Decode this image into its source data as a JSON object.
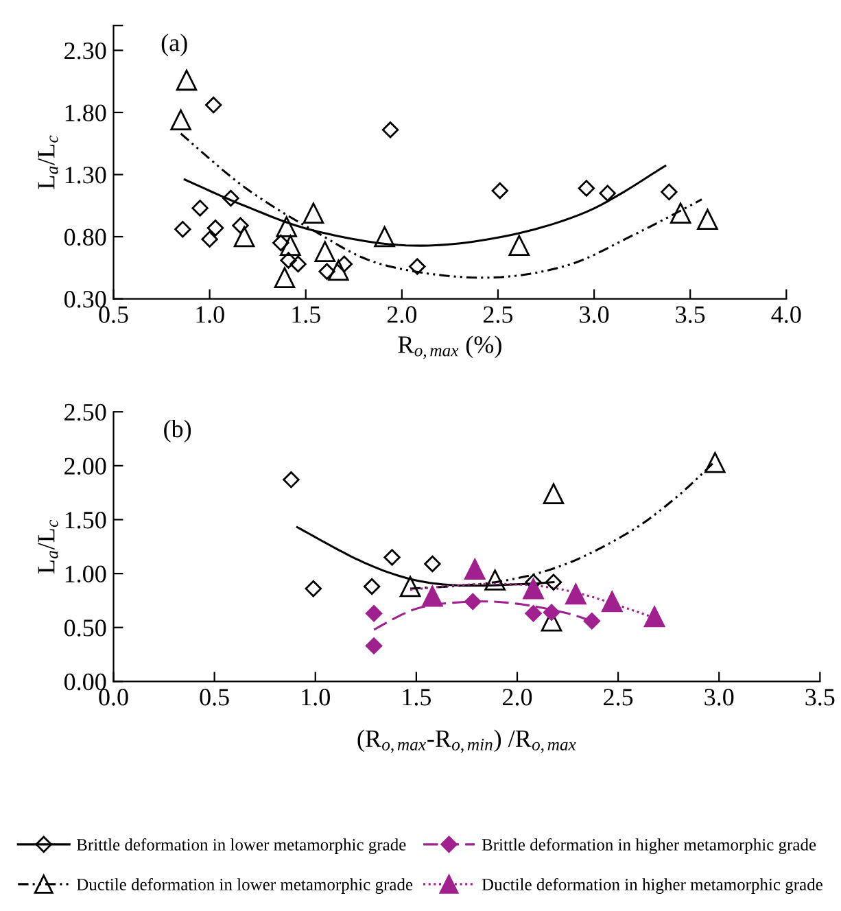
{
  "chart_data": [
    {
      "type": "scatter",
      "annotations": [
        "(a)"
      ],
      "xlabel": "R$_{o,max}$ (%)",
      "ylabel": "L$_{a}$/L$_{c}$",
      "xlim": [
        0.5,
        4.0
      ],
      "xticks": [
        {
          "value": 0.5,
          "label": "0.5"
        },
        {
          "value": 1.0,
          "label": "1.0"
        },
        {
          "value": 1.5,
          "label": "1.5"
        },
        {
          "value": 2.0,
          "label": "2.0"
        },
        {
          "value": 2.5,
          "label": "2.5"
        },
        {
          "value": 3.0,
          "label": "3.0"
        },
        {
          "value": 3.5,
          "label": "3.5"
        },
        {
          "value": 4.0,
          "label": "4.0"
        }
      ],
      "ylim": [
        0.3,
        2.5
      ],
      "yticks": [
        {
          "value": 0.3,
          "label": "0.30"
        },
        {
          "value": 0.8,
          "label": "0.80"
        },
        {
          "value": 1.3,
          "label": "1.30"
        },
        {
          "value": 1.8,
          "label": "1.80"
        },
        {
          "value": 2.3,
          "label": "2.30"
        },
        {
          "value": 2.5,
          "label": null
        }
      ],
      "grid": false,
      "series": [
        {
          "marker": "diamond",
          "color": "#000000",
          "x": [
            0.86,
            1.02,
            0.95,
            1.11,
            1.0,
            1.03,
            1.16,
            1.37,
            1.41,
            1.46,
            1.61,
            1.7,
            1.94,
            2.08,
            2.51,
            2.96,
            3.07,
            3.39
          ],
          "values": [
            0.86,
            1.86,
            1.03,
            1.11,
            0.78,
            0.87,
            0.89,
            0.75,
            0.61,
            0.58,
            0.52,
            0.58,
            1.66,
            0.56,
            1.17,
            1.19,
            1.15,
            1.16
          ]
        },
        {
          "marker": "triangle",
          "color": "#000000",
          "x": [
            0.85,
            0.88,
            1.18,
            1.4,
            1.42,
            1.39,
            1.54,
            1.6,
            1.67,
            1.91,
            2.61,
            3.45,
            3.59
          ],
          "values": [
            1.74,
            2.06,
            0.8,
            0.88,
            0.73,
            0.47,
            0.99,
            0.68,
            0.53,
            0.8,
            0.73,
            0.99,
            0.94
          ]
        },
        {
          "type": "line",
          "line_style": "solid",
          "color": "#000000",
          "x": [
            0.87,
            1.18,
            1.54,
            2.02,
            2.49,
            2.96,
            3.37
          ],
          "values": [
            1.26,
            1.05,
            0.85,
            0.73,
            0.79,
            1.0,
            1.37
          ]
        },
        {
          "type": "line",
          "line_style": "dashdot",
          "color": "#000000",
          "x": [
            0.85,
            1.18,
            1.54,
            1.89,
            2.4,
            2.84,
            3.2,
            3.56
          ],
          "values": [
            1.63,
            1.2,
            0.85,
            0.58,
            0.47,
            0.56,
            0.81,
            1.1
          ]
        }
      ]
    },
    {
      "type": "scatter",
      "annotations": [
        "(b)"
      ],
      "xlabel": "(R$_{o,max}$-R$_{o,min}$) /R$_{o,max}$",
      "ylabel": "L$_{a}$/L$_{c}$",
      "xlim": [
        0.0,
        3.5
      ],
      "xticks": [
        {
          "value": 0.0,
          "label": "0.0"
        },
        {
          "value": 0.5,
          "label": "0.5"
        },
        {
          "value": 1.0,
          "label": "1.0"
        },
        {
          "value": 1.5,
          "label": "1.5"
        },
        {
          "value": 2.0,
          "label": "2.0"
        },
        {
          "value": 2.5,
          "label": "2.5"
        },
        {
          "value": 3.0,
          "label": "3.0"
        },
        {
          "value": 3.5,
          "label": "3.5"
        }
      ],
      "ylim": [
        0.0,
        2.5
      ],
      "yticks": [
        {
          "value": 0.0,
          "label": "0.00"
        },
        {
          "value": 0.5,
          "label": "0.50"
        },
        {
          "value": 1.0,
          "label": "1.00"
        },
        {
          "value": 1.5,
          "label": "1.50"
        },
        {
          "value": 2.0,
          "label": "2.00"
        },
        {
          "value": 2.5,
          "label": "2.50"
        }
      ],
      "grid": false,
      "legend": "bottom",
      "series": [
        {
          "name": "Brittle deformation in lower metamorphic grade",
          "marker": "diamond",
          "color": "#000000",
          "x": [
            0.88,
            0.99,
            1.28,
            1.38,
            1.58,
            2.08,
            2.18
          ],
          "values": [
            1.87,
            0.86,
            0.88,
            1.15,
            1.09,
            0.92,
            0.92
          ]
        },
        {
          "name": "Ductile deformation in lower metamorphic grade",
          "marker": "triangle",
          "color": "#000000",
          "x": [
            1.47,
            1.89,
            2.18,
            2.17,
            2.98
          ],
          "values": [
            0.88,
            0.94,
            1.74,
            0.56,
            2.03
          ]
        },
        {
          "name": "Brittle deformation in higher metamorphic grade",
          "marker": "diamond",
          "color": "#a0208f",
          "x": [
            1.29,
            1.29,
            1.78,
            2.08,
            2.17,
            2.37
          ],
          "values": [
            0.63,
            0.33,
            0.74,
            0.63,
            0.64,
            0.56
          ]
        },
        {
          "name": "Ductile deformation in higher metamorphic grade",
          "marker": "triangle",
          "color": "#a0208f",
          "x": [
            1.79,
            1.58,
            2.08,
            2.29,
            2.47,
            2.68
          ],
          "values": [
            1.04,
            0.79,
            0.86,
            0.81,
            0.74,
            0.6
          ]
        },
        {
          "type": "line",
          "line_style": "solid",
          "color": "#000000",
          "x": [
            0.91,
            1.22,
            1.47,
            1.71,
            2.0,
            2.18
          ],
          "values": [
            1.43,
            1.12,
            0.95,
            0.89,
            0.9,
            0.92
          ]
        },
        {
          "type": "line",
          "line_style": "dashdot",
          "color": "#000000",
          "x": [
            1.47,
            1.89,
            2.23,
            2.56,
            2.79,
            2.98
          ],
          "values": [
            0.86,
            0.92,
            1.08,
            1.39,
            1.71,
            2.04
          ]
        },
        {
          "type": "line",
          "line_style": "dashed",
          "color": "#a0208f",
          "x": [
            1.29,
            1.51,
            1.78,
            2.0,
            2.23,
            2.37
          ],
          "values": [
            0.48,
            0.68,
            0.74,
            0.72,
            0.64,
            0.56
          ]
        },
        {
          "type": "line",
          "line_style": "dotted",
          "color": "#a0208f",
          "x": [
            1.47,
            1.78,
            2.08,
            2.34,
            2.68
          ],
          "values": [
            0.85,
            0.9,
            0.89,
            0.8,
            0.59
          ]
        }
      ]
    }
  ]
}
